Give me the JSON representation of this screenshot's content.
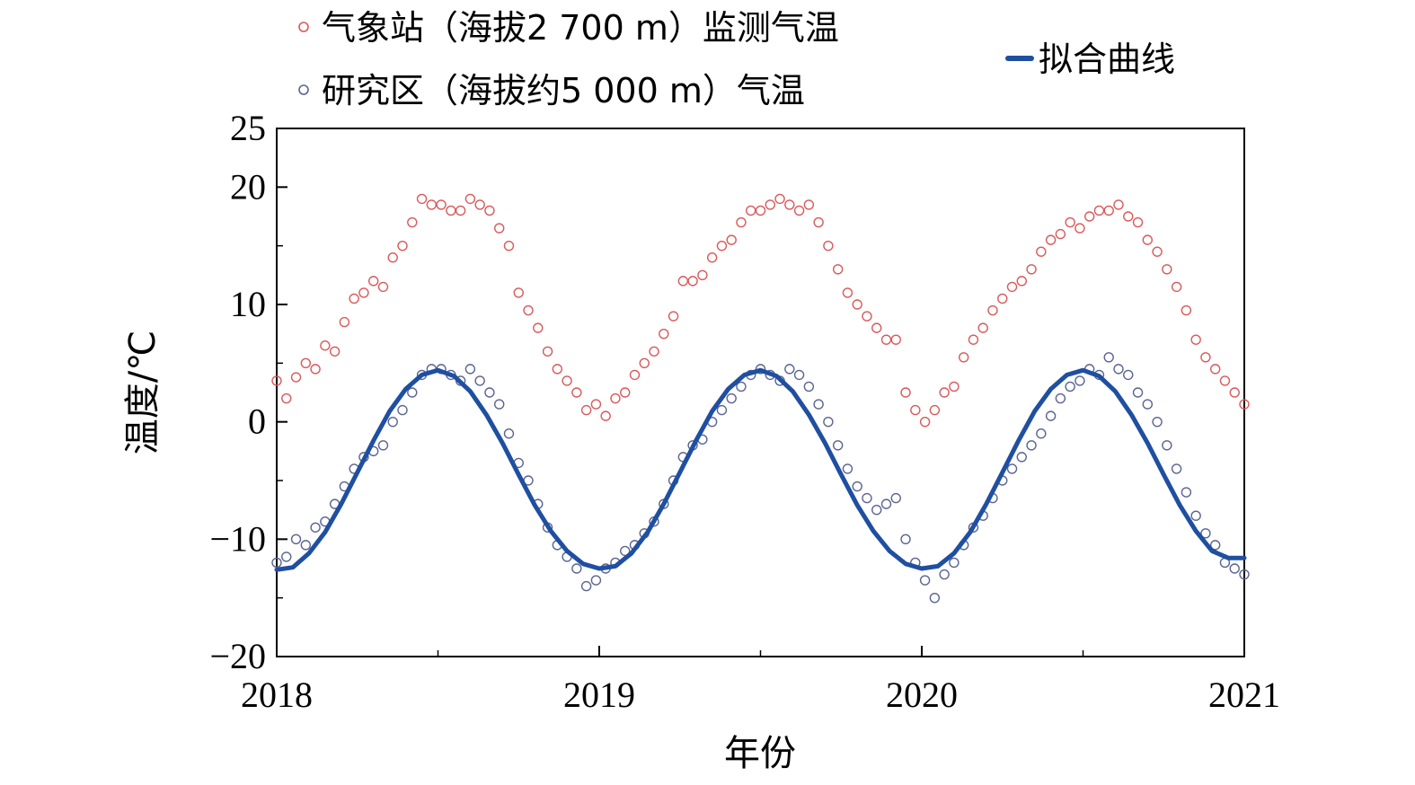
{
  "chart_data": {
    "type": "scatter",
    "title": "",
    "xlabel": "年份",
    "ylabel": "温度/℃",
    "xlim": [
      2018,
      2021
    ],
    "ylim": [
      -20,
      25
    ],
    "x_ticks": [
      "2018",
      "2019",
      "2020",
      "2021"
    ],
    "y_ticks": [
      "−20",
      "−10",
      "0",
      "10",
      "20",
      "25"
    ],
    "grid": false,
    "legend_position": "top",
    "series": [
      {
        "name": "气象站（海拔2 700 m）监测气温",
        "kind": "scatter",
        "marker": "open-circle",
        "color": "#d9595b",
        "points": [
          [
            2018.0,
            3.5
          ],
          [
            2018.03,
            2.0
          ],
          [
            2018.06,
            3.8
          ],
          [
            2018.09,
            5.0
          ],
          [
            2018.12,
            4.5
          ],
          [
            2018.15,
            6.5
          ],
          [
            2018.18,
            6.0
          ],
          [
            2018.21,
            8.5
          ],
          [
            2018.24,
            10.5
          ],
          [
            2018.27,
            11.0
          ],
          [
            2018.3,
            12.0
          ],
          [
            2018.33,
            11.5
          ],
          [
            2018.36,
            14.0
          ],
          [
            2018.39,
            15.0
          ],
          [
            2018.42,
            17.0
          ],
          [
            2018.45,
            19.0
          ],
          [
            2018.48,
            18.5
          ],
          [
            2018.51,
            18.5
          ],
          [
            2018.54,
            18.0
          ],
          [
            2018.57,
            18.0
          ],
          [
            2018.6,
            19.0
          ],
          [
            2018.63,
            18.5
          ],
          [
            2018.66,
            18.0
          ],
          [
            2018.69,
            16.5
          ],
          [
            2018.72,
            15.0
          ],
          [
            2018.75,
            11.0
          ],
          [
            2018.78,
            9.5
          ],
          [
            2018.81,
            8.0
          ],
          [
            2018.84,
            6.0
          ],
          [
            2018.87,
            4.5
          ],
          [
            2018.9,
            3.5
          ],
          [
            2018.93,
            2.5
          ],
          [
            2018.96,
            1.0
          ],
          [
            2018.99,
            1.5
          ],
          [
            2019.02,
            0.5
          ],
          [
            2019.05,
            2.0
          ],
          [
            2019.08,
            2.5
          ],
          [
            2019.11,
            4.0
          ],
          [
            2019.14,
            5.0
          ],
          [
            2019.17,
            6.0
          ],
          [
            2019.2,
            7.5
          ],
          [
            2019.23,
            9.0
          ],
          [
            2019.26,
            12.0
          ],
          [
            2019.29,
            12.0
          ],
          [
            2019.32,
            12.5
          ],
          [
            2019.35,
            14.0
          ],
          [
            2019.38,
            15.0
          ],
          [
            2019.41,
            15.5
          ],
          [
            2019.44,
            17.0
          ],
          [
            2019.47,
            18.0
          ],
          [
            2019.5,
            18.0
          ],
          [
            2019.53,
            18.5
          ],
          [
            2019.56,
            19.0
          ],
          [
            2019.59,
            18.5
          ],
          [
            2019.62,
            18.0
          ],
          [
            2019.65,
            18.5
          ],
          [
            2019.68,
            17.0
          ],
          [
            2019.71,
            15.0
          ],
          [
            2019.74,
            13.0
          ],
          [
            2019.77,
            11.0
          ],
          [
            2019.8,
            10.0
          ],
          [
            2019.83,
            9.0
          ],
          [
            2019.86,
            8.0
          ],
          [
            2019.89,
            7.0
          ],
          [
            2019.92,
            7.0
          ],
          [
            2019.95,
            2.5
          ],
          [
            2019.98,
            1.0
          ],
          [
            2020.01,
            0.0
          ],
          [
            2020.04,
            1.0
          ],
          [
            2020.07,
            2.5
          ],
          [
            2020.1,
            3.0
          ],
          [
            2020.13,
            5.5
          ],
          [
            2020.16,
            7.0
          ],
          [
            2020.19,
            8.0
          ],
          [
            2020.22,
            9.5
          ],
          [
            2020.25,
            10.5
          ],
          [
            2020.28,
            11.5
          ],
          [
            2020.31,
            12.0
          ],
          [
            2020.34,
            13.0
          ],
          [
            2020.37,
            14.5
          ],
          [
            2020.4,
            15.5
          ],
          [
            2020.43,
            16.0
          ],
          [
            2020.46,
            17.0
          ],
          [
            2020.49,
            16.5
          ],
          [
            2020.52,
            17.5
          ],
          [
            2020.55,
            18.0
          ],
          [
            2020.58,
            18.0
          ],
          [
            2020.61,
            18.5
          ],
          [
            2020.64,
            17.5
          ],
          [
            2020.67,
            17.0
          ],
          [
            2020.7,
            15.5
          ],
          [
            2020.73,
            14.5
          ],
          [
            2020.76,
            13.0
          ],
          [
            2020.79,
            11.5
          ],
          [
            2020.82,
            9.5
          ],
          [
            2020.85,
            7.0
          ],
          [
            2020.88,
            5.5
          ],
          [
            2020.91,
            4.5
          ],
          [
            2020.94,
            3.5
          ],
          [
            2020.97,
            2.5
          ],
          [
            2021.0,
            1.5
          ]
        ]
      },
      {
        "name": "研究区（海拔约5 000 m）气温",
        "kind": "scatter",
        "marker": "open-circle",
        "color": "#5a6491",
        "points": [
          [
            2018.0,
            -12.0
          ],
          [
            2018.03,
            -11.5
          ],
          [
            2018.06,
            -10.0
          ],
          [
            2018.09,
            -10.5
          ],
          [
            2018.12,
            -9.0
          ],
          [
            2018.15,
            -8.5
          ],
          [
            2018.18,
            -7.0
          ],
          [
            2018.21,
            -5.5
          ],
          [
            2018.24,
            -4.0
          ],
          [
            2018.27,
            -3.0
          ],
          [
            2018.3,
            -2.5
          ],
          [
            2018.33,
            -2.0
          ],
          [
            2018.36,
            0.0
          ],
          [
            2018.39,
            1.0
          ],
          [
            2018.42,
            2.5
          ],
          [
            2018.45,
            4.0
          ],
          [
            2018.48,
            4.5
          ],
          [
            2018.51,
            4.5
          ],
          [
            2018.54,
            4.0
          ],
          [
            2018.57,
            3.5
          ],
          [
            2018.6,
            4.5
          ],
          [
            2018.63,
            3.5
          ],
          [
            2018.66,
            2.5
          ],
          [
            2018.69,
            1.5
          ],
          [
            2018.72,
            -1.0
          ],
          [
            2018.75,
            -3.5
          ],
          [
            2018.78,
            -5.0
          ],
          [
            2018.81,
            -7.0
          ],
          [
            2018.84,
            -9.0
          ],
          [
            2018.87,
            -10.5
          ],
          [
            2018.9,
            -11.5
          ],
          [
            2018.93,
            -12.5
          ],
          [
            2018.96,
            -14.0
          ],
          [
            2018.99,
            -13.5
          ],
          [
            2019.02,
            -12.5
          ],
          [
            2019.05,
            -12.0
          ],
          [
            2019.08,
            -11.0
          ],
          [
            2019.11,
            -10.5
          ],
          [
            2019.14,
            -9.5
          ],
          [
            2019.17,
            -8.5
          ],
          [
            2019.2,
            -7.0
          ],
          [
            2019.23,
            -5.0
          ],
          [
            2019.26,
            -3.0
          ],
          [
            2019.29,
            -2.0
          ],
          [
            2019.32,
            -1.5
          ],
          [
            2019.35,
            0.0
          ],
          [
            2019.38,
            1.0
          ],
          [
            2019.41,
            2.0
          ],
          [
            2019.44,
            3.0
          ],
          [
            2019.47,
            4.0
          ],
          [
            2019.5,
            4.5
          ],
          [
            2019.53,
            4.0
          ],
          [
            2019.56,
            3.5
          ],
          [
            2019.59,
            4.5
          ],
          [
            2019.62,
            4.0
          ],
          [
            2019.65,
            3.0
          ],
          [
            2019.68,
            1.5
          ],
          [
            2019.71,
            0.0
          ],
          [
            2019.74,
            -2.0
          ],
          [
            2019.77,
            -4.0
          ],
          [
            2019.8,
            -5.5
          ],
          [
            2019.83,
            -6.5
          ],
          [
            2019.86,
            -7.5
          ],
          [
            2019.89,
            -7.0
          ],
          [
            2019.92,
            -6.5
          ],
          [
            2019.95,
            -10.0
          ],
          [
            2019.98,
            -12.0
          ],
          [
            2020.01,
            -13.5
          ],
          [
            2020.04,
            -15.0
          ],
          [
            2020.07,
            -13.0
          ],
          [
            2020.1,
            -12.0
          ],
          [
            2020.13,
            -10.5
          ],
          [
            2020.16,
            -9.0
          ],
          [
            2020.19,
            -8.0
          ],
          [
            2020.22,
            -6.5
          ],
          [
            2020.25,
            -5.0
          ],
          [
            2020.28,
            -4.0
          ],
          [
            2020.31,
            -3.0
          ],
          [
            2020.34,
            -2.0
          ],
          [
            2020.37,
            -1.0
          ],
          [
            2020.4,
            0.5
          ],
          [
            2020.43,
            2.0
          ],
          [
            2020.46,
            3.0
          ],
          [
            2020.49,
            3.5
          ],
          [
            2020.52,
            4.5
          ],
          [
            2020.55,
            4.0
          ],
          [
            2020.58,
            5.5
          ],
          [
            2020.61,
            4.5
          ],
          [
            2020.64,
            4.0
          ],
          [
            2020.67,
            2.5
          ],
          [
            2020.7,
            1.5
          ],
          [
            2020.73,
            0.0
          ],
          [
            2020.76,
            -2.0
          ],
          [
            2020.79,
            -4.0
          ],
          [
            2020.82,
            -6.0
          ],
          [
            2020.85,
            -8.0
          ],
          [
            2020.88,
            -9.5
          ],
          [
            2020.91,
            -10.5
          ],
          [
            2020.94,
            -12.0
          ],
          [
            2020.97,
            -12.5
          ],
          [
            2021.0,
            -13.0
          ]
        ]
      },
      {
        "name": "拟合曲线",
        "kind": "line",
        "color": "#1f4fa0",
        "points": [
          [
            2018.0,
            -12.6
          ],
          [
            2018.05,
            -12.4
          ],
          [
            2018.1,
            -11.2
          ],
          [
            2018.15,
            -9.4
          ],
          [
            2018.2,
            -7.0
          ],
          [
            2018.25,
            -4.3
          ],
          [
            2018.3,
            -1.6
          ],
          [
            2018.35,
            0.9
          ],
          [
            2018.4,
            2.8
          ],
          [
            2018.45,
            4.0
          ],
          [
            2018.5,
            4.4
          ],
          [
            2018.55,
            3.9
          ],
          [
            2018.6,
            2.6
          ],
          [
            2018.65,
            0.6
          ],
          [
            2018.7,
            -1.8
          ],
          [
            2018.75,
            -4.5
          ],
          [
            2018.8,
            -7.1
          ],
          [
            2018.85,
            -9.3
          ],
          [
            2018.9,
            -11.0
          ],
          [
            2018.95,
            -12.1
          ],
          [
            2019.0,
            -12.5
          ],
          [
            2019.05,
            -12.3
          ],
          [
            2019.1,
            -11.2
          ],
          [
            2019.15,
            -9.4
          ],
          [
            2019.2,
            -7.0
          ],
          [
            2019.25,
            -4.3
          ],
          [
            2019.3,
            -1.6
          ],
          [
            2019.35,
            0.9
          ],
          [
            2019.4,
            2.8
          ],
          [
            2019.45,
            4.0
          ],
          [
            2019.5,
            4.4
          ],
          [
            2019.55,
            3.9
          ],
          [
            2019.6,
            2.6
          ],
          [
            2019.65,
            0.6
          ],
          [
            2019.7,
            -1.8
          ],
          [
            2019.75,
            -4.5
          ],
          [
            2019.8,
            -7.1
          ],
          [
            2019.85,
            -9.3
          ],
          [
            2019.9,
            -11.0
          ],
          [
            2019.95,
            -12.1
          ],
          [
            2020.0,
            -12.5
          ],
          [
            2020.05,
            -12.3
          ],
          [
            2020.1,
            -11.2
          ],
          [
            2020.15,
            -9.4
          ],
          [
            2020.2,
            -7.0
          ],
          [
            2020.25,
            -4.3
          ],
          [
            2020.3,
            -1.6
          ],
          [
            2020.35,
            0.9
          ],
          [
            2020.4,
            2.8
          ],
          [
            2020.45,
            4.0
          ],
          [
            2020.5,
            4.4
          ],
          [
            2020.55,
            3.9
          ],
          [
            2020.6,
            2.6
          ],
          [
            2020.65,
            0.6
          ],
          [
            2020.7,
            -1.8
          ],
          [
            2020.75,
            -4.5
          ],
          [
            2020.8,
            -7.1
          ],
          [
            2020.85,
            -9.3
          ],
          [
            2020.9,
            -11.0
          ],
          [
            2020.95,
            -11.6
          ],
          [
            2021.0,
            -11.6
          ]
        ]
      }
    ]
  }
}
